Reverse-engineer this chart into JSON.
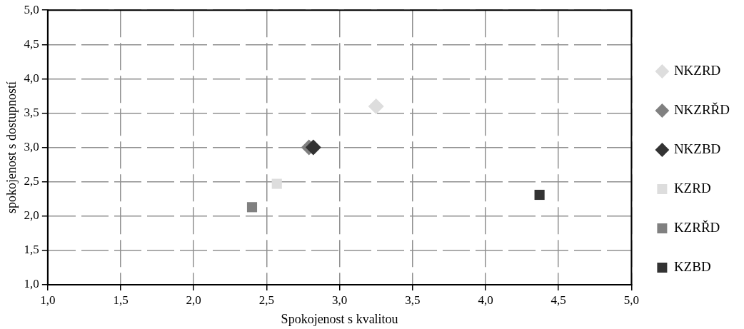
{
  "chart_data": {
    "type": "scatter",
    "xlabel": "Spokojenost s kvalitou",
    "ylabel": "spokojenost s dostupností",
    "xlim": [
      1,
      5
    ],
    "ylim": [
      1,
      5
    ],
    "xticks": [
      {
        "value": 1,
        "label": "1,0"
      },
      {
        "value": 1.5,
        "label": "1,5"
      },
      {
        "value": 2,
        "label": "2,0"
      },
      {
        "value": 2.5,
        "label": "2,5"
      },
      {
        "value": 3,
        "label": "3,0"
      },
      {
        "value": 3.5,
        "label": "3,5"
      },
      {
        "value": 4,
        "label": "4,0"
      },
      {
        "value": 4.5,
        "label": "4,5"
      },
      {
        "value": 5,
        "label": "5,0"
      }
    ],
    "yticks": [
      {
        "value": 1,
        "label": "1,0"
      },
      {
        "value": 1.5,
        "label": "1,5"
      },
      {
        "value": 2,
        "label": "2,0"
      },
      {
        "value": 2.5,
        "label": "2,5"
      },
      {
        "value": 3,
        "label": "3,0"
      },
      {
        "value": 3.5,
        "label": "3,5"
      },
      {
        "value": 4,
        "label": "4,0"
      },
      {
        "value": 4.5,
        "label": "4,5"
      },
      {
        "value": 5,
        "label": "5,0"
      }
    ],
    "grid": true,
    "legend": "right",
    "line_style": "dashed",
    "series": [
      {
        "name": "NKZRD",
        "color": "#dddddd",
        "marker": "diamond",
        "x": [
          3.25
        ],
        "values": [
          3.6
        ]
      },
      {
        "name": "NKZRŘD",
        "color": "#808080",
        "marker": "diamond",
        "x": [
          2.79
        ],
        "values": [
          3.0
        ]
      },
      {
        "name": "NKZBD",
        "color": "#333333",
        "marker": "diamond",
        "x": [
          2.82
        ],
        "values": [
          3.0
        ]
      },
      {
        "name": "KZRD",
        "color": "#dddddd",
        "marker": "square",
        "x": [
          2.57
        ],
        "values": [
          2.47
        ]
      },
      {
        "name": "KZRŘD",
        "color": "#808080",
        "marker": "square",
        "x": [
          2.4
        ],
        "values": [
          2.13
        ]
      },
      {
        "name": "KZBD",
        "color": "#333333",
        "marker": "square",
        "x": [
          4.37
        ],
        "values": [
          2.31
        ]
      }
    ]
  }
}
